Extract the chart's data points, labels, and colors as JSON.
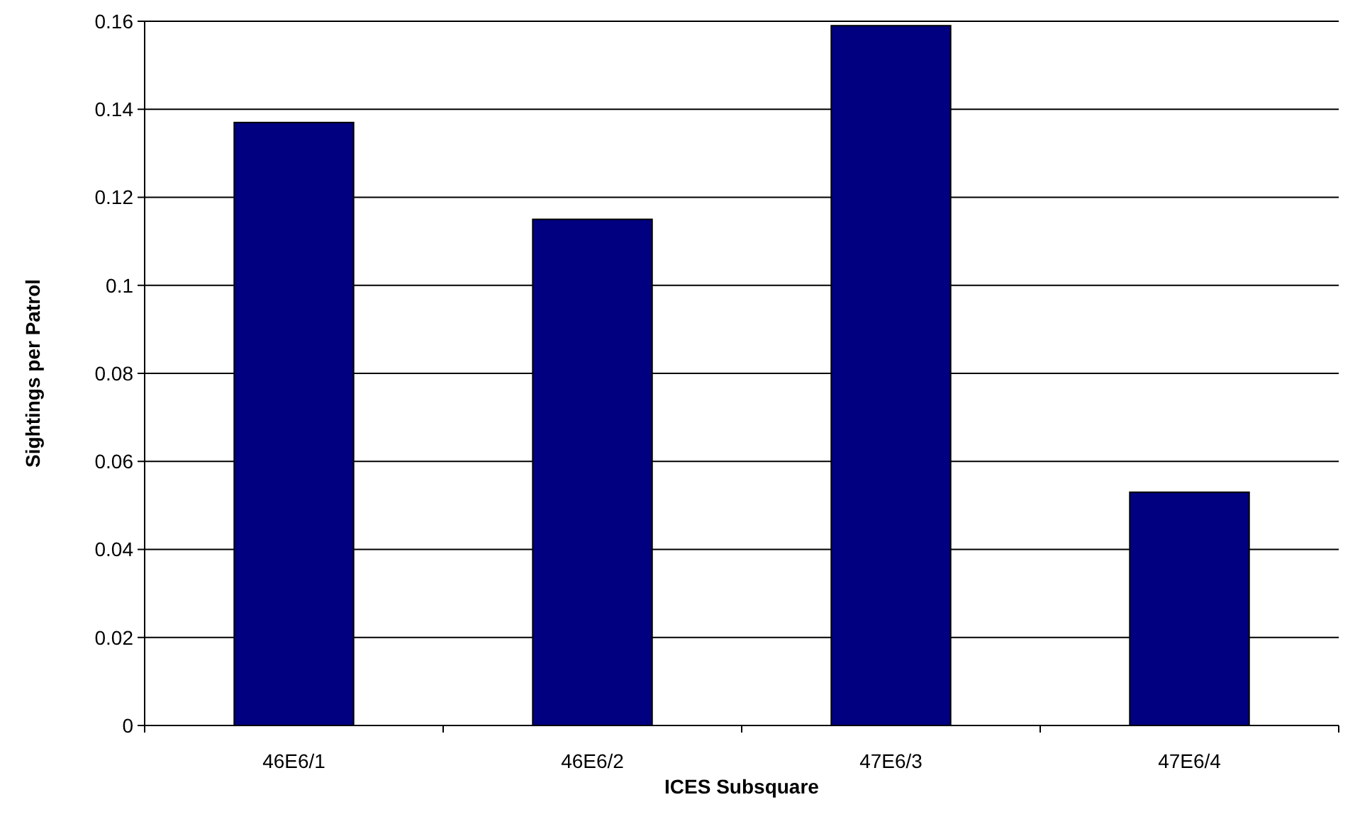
{
  "chart_data": {
    "type": "bar",
    "xlabel": "ICES Subsquare",
    "ylabel": "Sightings per Patrol",
    "categories": [
      "46E6/1",
      "46E6/2",
      "47E6/3",
      "47E6/4"
    ],
    "values": [
      0.137,
      0.115,
      0.159,
      0.053
    ],
    "color": "#000080",
    "ylim": [
      0,
      0.16
    ],
    "yticks": [
      0,
      0.02,
      0.04,
      0.06,
      0.08,
      0.1,
      0.12,
      0.14,
      0.16
    ],
    "grid": "y"
  }
}
